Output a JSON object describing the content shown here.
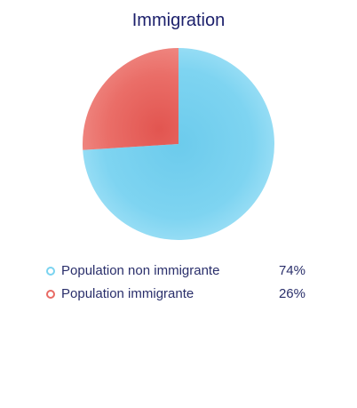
{
  "title": "Immigration",
  "legend": [
    {
      "label": "Population non immigrante",
      "value_text": "74%",
      "color": "#7ad3f0"
    },
    {
      "label": "Population immigrante",
      "value_text": "26%",
      "color": "#e86a64"
    }
  ],
  "chart_data": {
    "type": "pie",
    "title": "Immigration",
    "categories": [
      "Population non immigrante",
      "Population immigrante"
    ],
    "values": [
      74,
      26
    ],
    "unit": "%",
    "colors": [
      "#7ad3f0",
      "#e86a64"
    ],
    "legend_position": "bottom"
  }
}
